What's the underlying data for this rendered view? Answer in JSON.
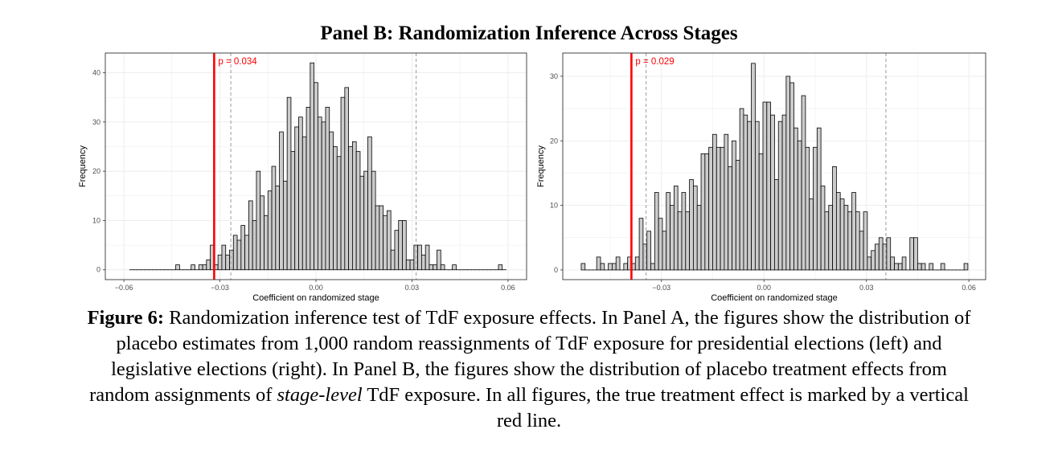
{
  "title": "Panel B: Randomization Inference Across Stages",
  "caption": {
    "label": "Figure 6:",
    "line1": " Randomization inference test of TdF exposure effects. In Panel A, the figures show the distribution of",
    "line2": "placebo estimates from 1,000 random reassignments of TdF exposure for presidential elections (left) and",
    "line3": "legislative elections (right). In Panel B, the figures show the distribution of placebo treatment effects from",
    "line4_pre": "random assignments of ",
    "line4_italic": "stage-level",
    "line4_post": " TdF exposure. In all figures, the true treatment effect is marked by a vertical",
    "line5": "red line."
  },
  "colors": {
    "bar_fill": "#cccccc",
    "bar_stroke": "#000000",
    "true_effect": "#ff0000",
    "quantile": "#999999",
    "grid": "#ebebeb"
  },
  "chart_data": [
    {
      "type": "bar",
      "subtype": "histogram",
      "xlabel": "Coefficient on randomized stage",
      "ylabel": "Frequency",
      "xlim": [
        -0.0658,
        0.0658
      ],
      "ylim": [
        -2,
        44
      ],
      "xticks": [
        -0.06,
        -0.03,
        0.0,
        0.03,
        0.06
      ],
      "xtick_labels": [
        "−0.06",
        "−0.03",
        "0.00",
        "0.03",
        "0.06"
      ],
      "yticks": [
        0,
        10,
        20,
        30,
        40
      ],
      "ytick_labels": [
        "0",
        "10",
        "20",
        "30",
        "40"
      ],
      "bin_start": -0.0582,
      "bin_width": 0.0012,
      "counts": [
        0,
        0,
        0,
        0,
        0,
        0,
        0,
        0,
        0,
        0,
        0,
        0,
        1,
        0,
        0,
        0,
        1,
        0,
        1,
        1,
        2,
        5,
        1,
        3,
        5,
        3,
        4,
        7,
        6,
        9,
        7,
        14,
        10,
        20,
        15,
        11,
        16,
        21,
        17,
        28,
        18,
        35,
        24,
        29,
        31,
        27,
        33,
        42,
        38,
        31,
        30,
        33,
        28,
        25,
        23,
        35,
        37,
        25,
        26,
        24,
        19,
        20,
        27,
        20,
        13,
        13,
        11,
        12,
        4,
        8,
        10,
        10,
        2,
        2,
        5,
        5,
        3,
        5,
        1,
        1,
        4,
        1,
        0,
        0,
        1,
        0,
        0,
        0,
        0,
        0,
        0,
        0,
        0,
        0,
        0,
        0,
        1,
        0
      ],
      "true_effect": -0.0318,
      "quantile_lines": [
        -0.0266,
        0.0313
      ],
      "annotation": "p = 0.034",
      "grid": true
    },
    {
      "type": "bar",
      "subtype": "histogram",
      "xlabel": "Coefficient on randomized stage",
      "ylabel": "Frequency",
      "xlim": [
        -0.0589,
        0.0649
      ],
      "ylim": [
        -1.5,
        33.6
      ],
      "xticks": [
        -0.03,
        0.0,
        0.03,
        0.06
      ],
      "xtick_labels": [
        "−0.03",
        "0.00",
        "0.03",
        "0.06"
      ],
      "yticks": [
        0,
        10,
        20,
        30
      ],
      "ytick_labels": [
        "0",
        "10",
        "20",
        "30"
      ],
      "bin_start": -0.0535,
      "bin_width": 0.001132,
      "counts": [
        1,
        0,
        0,
        0,
        2,
        1,
        0,
        1,
        1,
        2,
        0,
        1,
        2,
        1,
        2,
        8,
        4,
        6,
        1,
        12,
        8,
        6,
        12,
        10,
        13,
        9,
        12,
        9,
        14,
        13,
        10,
        18,
        18,
        19,
        21,
        19,
        19,
        21,
        16,
        20,
        17,
        25,
        24,
        23,
        32,
        23,
        18,
        26,
        26,
        24,
        14,
        23,
        24,
        30,
        29,
        22,
        20,
        27,
        19,
        11,
        19,
        22,
        13,
        9,
        10,
        16,
        12,
        11,
        10,
        9,
        12,
        9,
        6,
        9,
        2,
        3,
        4,
        5,
        4,
        5,
        2,
        1,
        1,
        2,
        0,
        5,
        5,
        1,
        1,
        0,
        1,
        0,
        0,
        1,
        0,
        0,
        0,
        0,
        0,
        1
      ],
      "true_effect": -0.0388,
      "quantile_lines": [
        -0.0345,
        0.0357
      ],
      "annotation": "p = 0.029",
      "grid": true
    }
  ]
}
